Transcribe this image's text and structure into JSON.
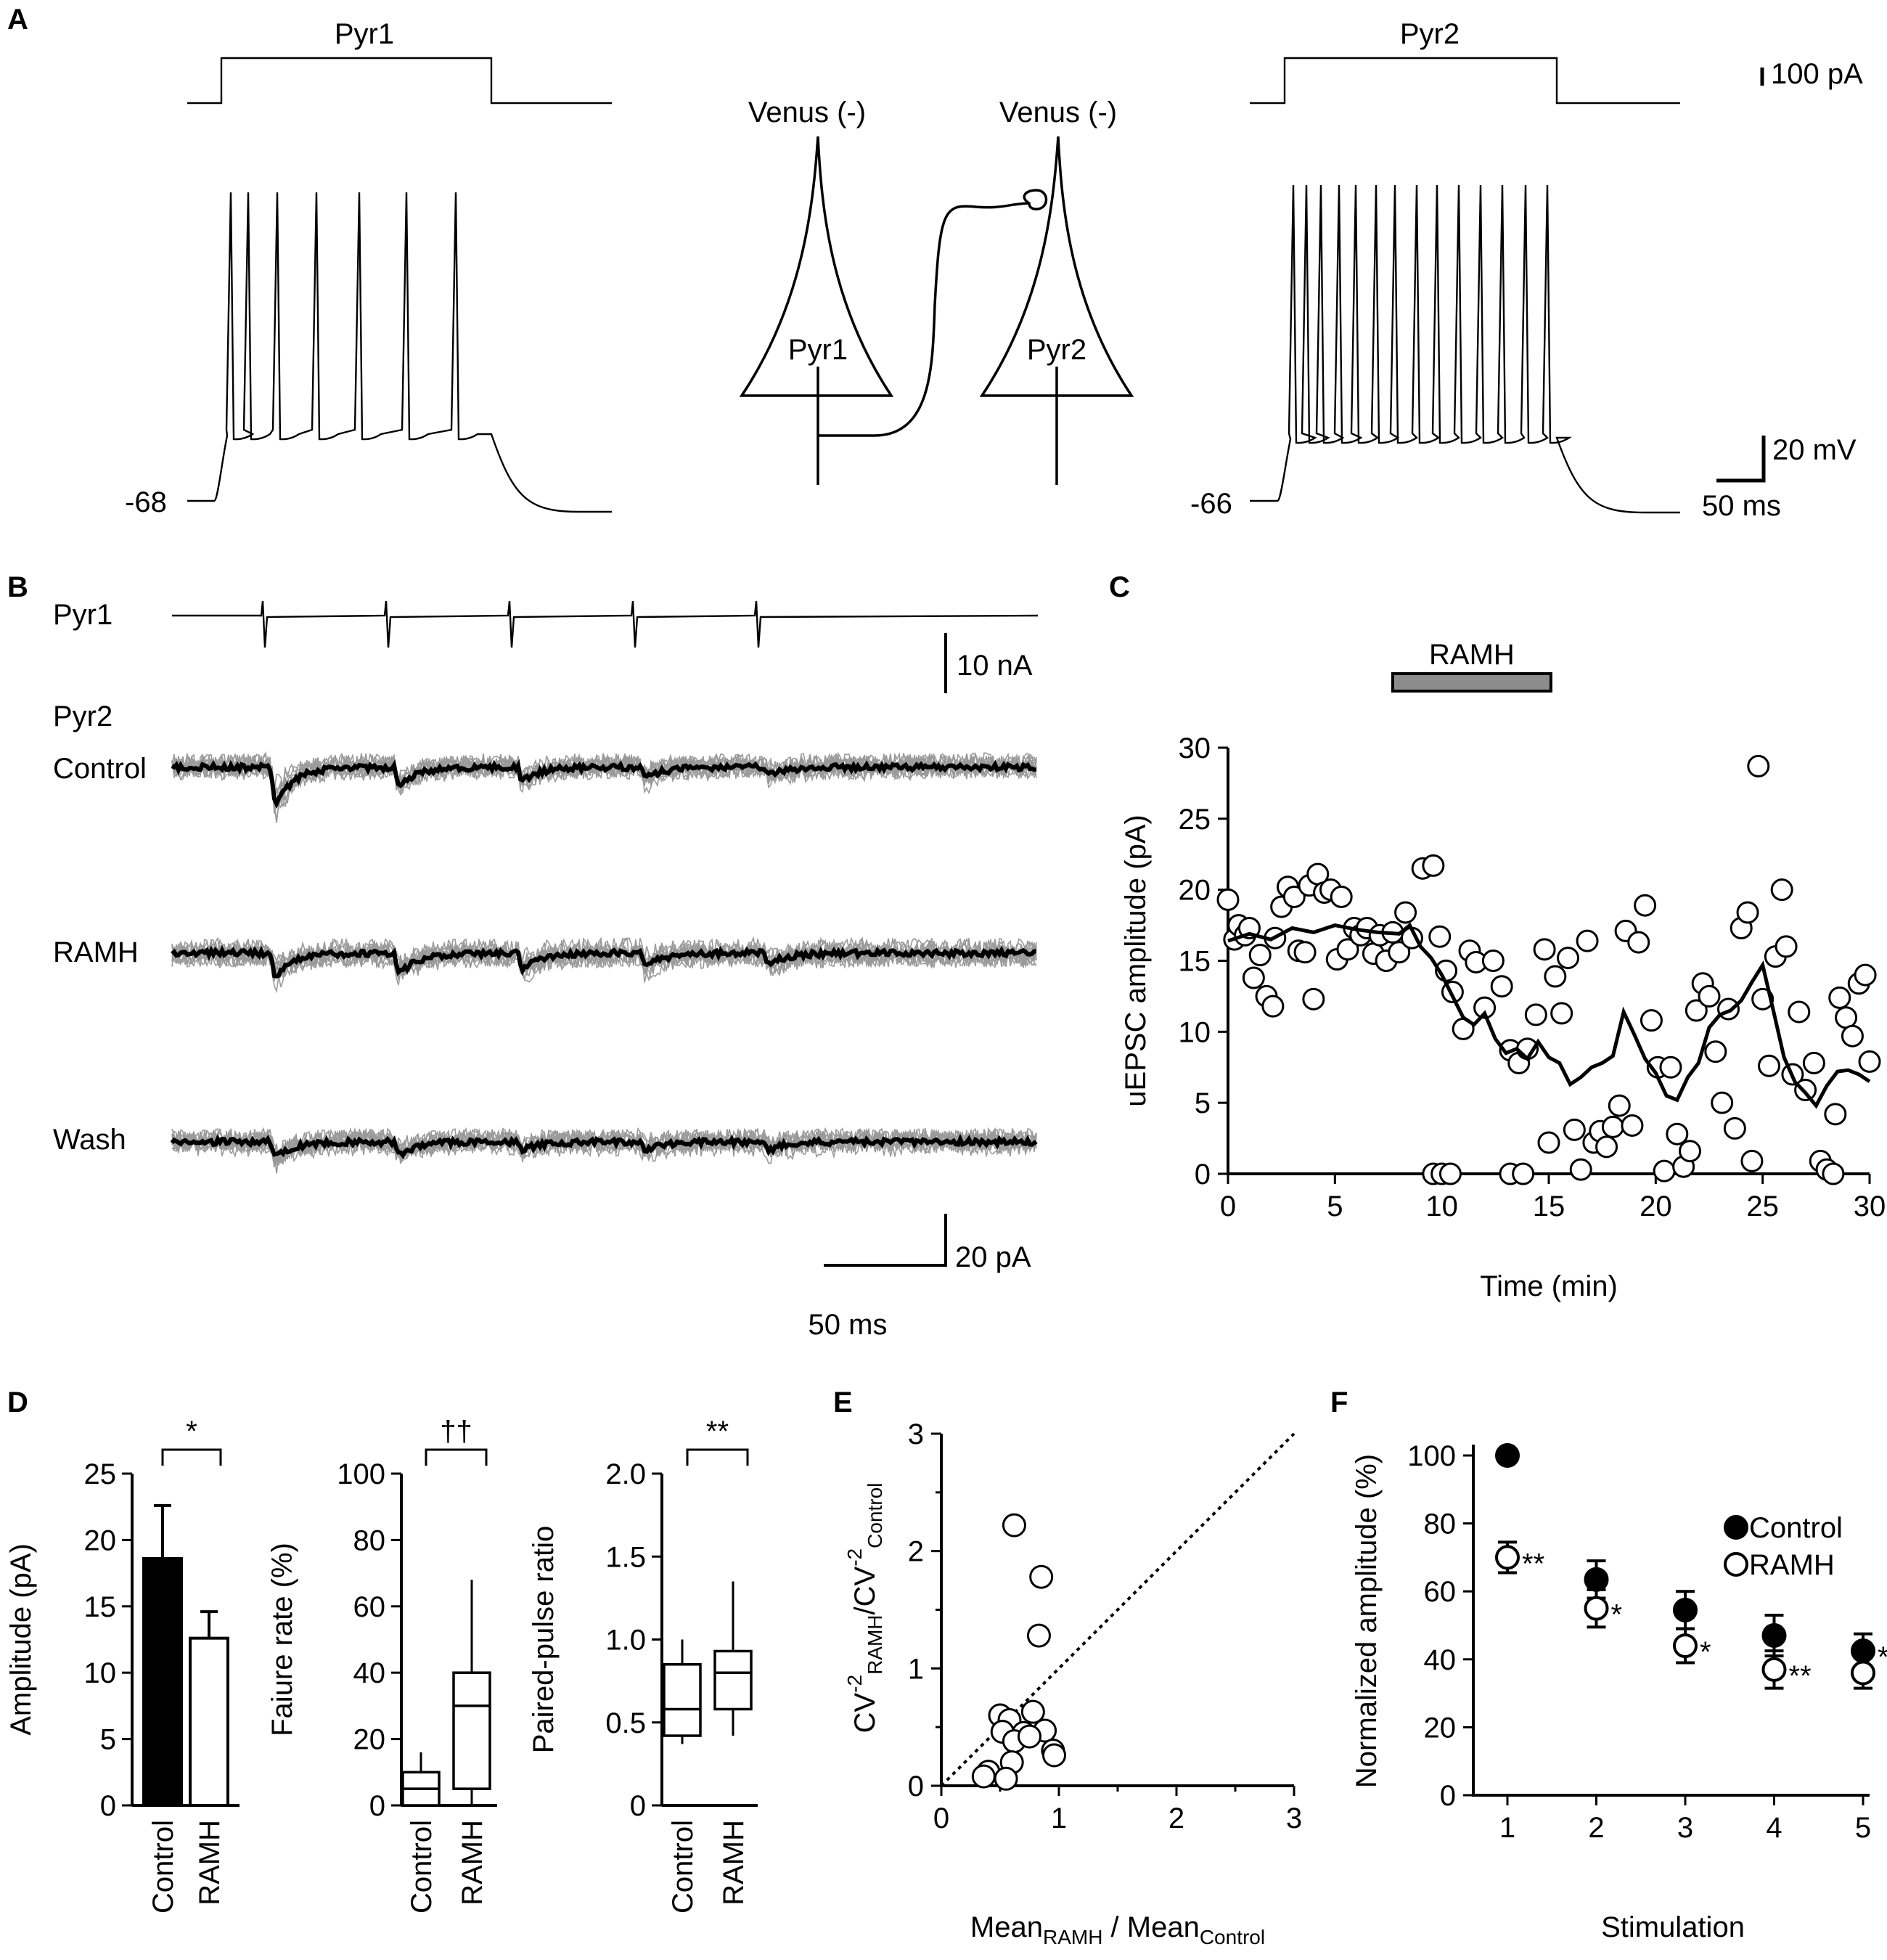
{
  "panels": {
    "A": {
      "label": "A",
      "cell1": "Pyr1",
      "cell2": "Pyr2",
      "marker1": "Venus (-)",
      "marker2": "Venus (-)",
      "soma1": "Pyr1",
      "soma2": "Pyr2",
      "vrest1": "-68",
      "vrest2": "-66",
      "scale_current": "100 pA",
      "scale_voltage": "20 mV",
      "scale_time": "50 ms"
    },
    "B": {
      "label": "B",
      "pre": "Pyr1",
      "post": "Pyr2",
      "cond_control": "Control",
      "cond_ramh": "RAMH",
      "cond_wash": "Wash",
      "scale_nA": "10 nA",
      "scale_pA": "20 pA",
      "scale_ms": "50 ms"
    },
    "C": {
      "label": "C",
      "drug_bar": "RAMH"
    },
    "D": {
      "label": "D"
    },
    "E": {
      "label": "E"
    },
    "F": {
      "label": "F"
    }
  },
  "chart_data": [
    {
      "id": "C",
      "type": "scatter",
      "xlabel": "Time (min)",
      "ylabel": "uEPSC amplitude (pA)",
      "xlim": [
        0,
        30
      ],
      "ylim": [
        0,
        30
      ],
      "xticks": [
        "0",
        "5",
        "10",
        "15",
        "20",
        "25",
        "30"
      ],
      "yticks": [
        "0",
        "5",
        "10",
        "15",
        "20",
        "25",
        "30"
      ],
      "drug_period": [
        7.7,
        15.1
      ],
      "points": [
        [
          0,
          19.3
        ],
        [
          0.3,
          16.5
        ],
        [
          0.5,
          17.5
        ],
        [
          0.8,
          16.8
        ],
        [
          1.0,
          17.3
        ],
        [
          1.2,
          13.8
        ],
        [
          1.5,
          15.4
        ],
        [
          1.8,
          12.5
        ],
        [
          2.1,
          11.8
        ],
        [
          2.2,
          16.6
        ],
        [
          2.5,
          18.8
        ],
        [
          2.8,
          20.2
        ],
        [
          3.1,
          19.5
        ],
        [
          3.3,
          15.7
        ],
        [
          3.6,
          15.6
        ],
        [
          3.8,
          20.3
        ],
        [
          4.0,
          12.3
        ],
        [
          4.2,
          21.1
        ],
        [
          4.5,
          19.8
        ],
        [
          4.8,
          20.0
        ],
        [
          5.1,
          15.1
        ],
        [
          5.3,
          19.5
        ],
        [
          5.6,
          15.8
        ],
        [
          5.9,
          17.3
        ],
        [
          6.2,
          16.8
        ],
        [
          6.5,
          17.3
        ],
        [
          6.8,
          15.5
        ],
        [
          7.1,
          16.8
        ],
        [
          7.4,
          15.0
        ],
        [
          7.7,
          17.0
        ],
        [
          8.0,
          15.6
        ],
        [
          8.3,
          18.4
        ],
        [
          8.6,
          16.6
        ],
        [
          9.1,
          21.5
        ],
        [
          9.6,
          21.7
        ],
        [
          9.9,
          16.7
        ],
        [
          10.2,
          14.3
        ],
        [
          10.5,
          12.8
        ],
        [
          11.0,
          10.2
        ],
        [
          11.3,
          15.7
        ],
        [
          11.6,
          14.9
        ],
        [
          12.0,
          11.7
        ],
        [
          12.4,
          15.0
        ],
        [
          12.8,
          13.2
        ],
        [
          13.2,
          8.7
        ],
        [
          13.6,
          7.8
        ],
        [
          14.0,
          8.8
        ],
        [
          14.4,
          11.2
        ],
        [
          14.8,
          15.8
        ],
        [
          15.0,
          2.2
        ],
        [
          15.3,
          13.9
        ],
        [
          15.6,
          11.3
        ],
        [
          15.9,
          15.2
        ],
        [
          16.2,
          3.1
        ],
        [
          16.5,
          0.3
        ],
        [
          16.8,
          16.4
        ],
        [
          17.1,
          2.2
        ],
        [
          17.4,
          3.0
        ],
        [
          17.7,
          1.9
        ],
        [
          18.0,
          3.3
        ],
        [
          18.3,
          4.8
        ],
        [
          18.6,
          17.1
        ],
        [
          18.9,
          3.4
        ],
        [
          19.2,
          16.3
        ],
        [
          19.5,
          18.9
        ],
        [
          19.8,
          10.8
        ],
        [
          20.1,
          7.5
        ],
        [
          20.4,
          0.2
        ],
        [
          20.7,
          7.5
        ],
        [
          21.0,
          2.8
        ],
        [
          21.3,
          0.5
        ],
        [
          21.6,
          1.6
        ],
        [
          21.9,
          11.5
        ],
        [
          22.2,
          13.4
        ],
        [
          22.5,
          12.5
        ],
        [
          22.8,
          8.6
        ],
        [
          23.1,
          5.0
        ],
        [
          23.4,
          11.6
        ],
        [
          23.7,
          3.2
        ],
        [
          24.0,
          17.3
        ],
        [
          24.3,
          18.4
        ],
        [
          24.5,
          0.9
        ],
        [
          24.8,
          28.7
        ],
        [
          25.0,
          12.3
        ],
        [
          25.3,
          7.6
        ],
        [
          25.6,
          15.3
        ],
        [
          25.9,
          20.0
        ],
        [
          26.1,
          16.0
        ],
        [
          26.4,
          7.0
        ],
        [
          26.7,
          11.4
        ],
        [
          27.0,
          5.9
        ],
        [
          27.4,
          7.8
        ],
        [
          27.7,
          0.9
        ],
        [
          28.0,
          0.3
        ],
        [
          28.4,
          4.2
        ],
        [
          28.6,
          12.4
        ],
        [
          28.9,
          11.0
        ],
        [
          29.2,
          9.7
        ],
        [
          29.5,
          13.4
        ],
        [
          29.8,
          14.0
        ],
        [
          30.0,
          7.9
        ],
        [
          9.6,
          0
        ],
        [
          10.0,
          0
        ],
        [
          10.4,
          0
        ],
        [
          13.2,
          0
        ],
        [
          13.8,
          0
        ],
        [
          28.3,
          0
        ]
      ],
      "running_mean": [
        [
          0,
          16.4
        ],
        [
          1,
          16.9
        ],
        [
          2,
          16.5
        ],
        [
          3,
          17.3
        ],
        [
          4,
          17.0
        ],
        [
          5,
          17.5
        ],
        [
          6,
          17.2
        ],
        [
          7,
          17.0
        ],
        [
          8,
          16.9
        ],
        [
          8.5,
          17.5
        ],
        [
          9,
          16.0
        ],
        [
          9.5,
          15.2
        ],
        [
          10,
          14.0
        ],
        [
          10.5,
          12.5
        ],
        [
          11,
          11.0
        ],
        [
          11.5,
          10.5
        ],
        [
          12,
          11.3
        ],
        [
          12.5,
          9.5
        ],
        [
          13,
          8.5
        ],
        [
          13.5,
          8.8
        ],
        [
          14,
          8.1
        ],
        [
          14.5,
          9.3
        ],
        [
          15,
          8.2
        ],
        [
          15.5,
          7.8
        ],
        [
          16,
          6.3
        ],
        [
          16.5,
          6.8
        ],
        [
          17,
          7.5
        ],
        [
          17.5,
          7.8
        ],
        [
          18,
          8.3
        ],
        [
          18.5,
          11.4
        ],
        [
          19,
          9.8
        ],
        [
          19.5,
          8.1
        ],
        [
          20,
          7.1
        ],
        [
          20.5,
          5.5
        ],
        [
          21,
          5.2
        ],
        [
          21.5,
          6.8
        ],
        [
          22,
          7.8
        ],
        [
          22.5,
          10.3
        ],
        [
          23,
          11.2
        ],
        [
          23.5,
          11.5
        ],
        [
          24,
          12.2
        ],
        [
          24.5,
          13.5
        ],
        [
          25,
          14.7
        ],
        [
          25.5,
          11.5
        ],
        [
          26,
          8.2
        ],
        [
          26.5,
          6.5
        ],
        [
          27,
          5.7
        ],
        [
          27.5,
          4.8
        ],
        [
          28,
          6.2
        ],
        [
          28.5,
          7.2
        ],
        [
          29,
          7.3
        ],
        [
          29.5,
          7.0
        ],
        [
          30,
          6.5
        ]
      ]
    },
    {
      "id": "D-amplitude",
      "type": "bar",
      "categories": [
        "Control",
        "RAMH"
      ],
      "values": [
        18.6,
        12.6
      ],
      "errors": [
        4.0,
        2.0
      ],
      "ylabel": "Amplitude (pA)",
      "ylim": [
        0,
        25
      ],
      "yticks": [
        "0",
        "5",
        "10",
        "15",
        "20",
        "25"
      ],
      "significance": "*"
    },
    {
      "id": "D-failure",
      "type": "box",
      "categories": [
        "Control",
        "RAMH"
      ],
      "boxes": [
        {
          "whisker_low": 0,
          "q1": 0,
          "median": 5,
          "q3": 10,
          "whisker_high": 16
        },
        {
          "whisker_low": 0,
          "q1": 5,
          "median": 30,
          "q3": 40,
          "whisker_high": 68
        }
      ],
      "ylabel": "Faiure rate (%)",
      "ylim": [
        0,
        100
      ],
      "yticks": [
        "0",
        "20",
        "40",
        "60",
        "80",
        "100"
      ],
      "significance": "††"
    },
    {
      "id": "D-ppr",
      "type": "box",
      "categories": [
        "Control",
        "RAMH"
      ],
      "boxes": [
        {
          "whisker_low": 0.37,
          "q1": 0.42,
          "median": 0.58,
          "q3": 0.85,
          "whisker_high": 1.0
        },
        {
          "whisker_low": 0.42,
          "q1": 0.58,
          "median": 0.8,
          "q3": 0.93,
          "whisker_high": 1.35
        }
      ],
      "ylabel": "Paired-pulse ratio",
      "ylim": [
        0,
        2.0
      ],
      "yticks": [
        "0",
        "0.5",
        "1.0",
        "1.5",
        "2.0"
      ],
      "significance": "**"
    },
    {
      "id": "E",
      "type": "scatter",
      "xlabel_main": "Mean",
      "xlabel_sub1": "RAMH",
      "xlabel_mid": " / Mean",
      "xlabel_sub2": "Control",
      "ylabel_main": "CV",
      "ylabel_sup": "-2",
      "ylabel_sub1": "RAMH",
      "ylabel_slash": "/CV",
      "ylabel_sub2": "Control",
      "xlim": [
        0,
        3
      ],
      "ylim": [
        0,
        3
      ],
      "xticks": [
        "0",
        "1",
        "2",
        "3"
      ],
      "yticks": [
        "0",
        "1",
        "2",
        "3"
      ],
      "identity_line": true,
      "points": [
        [
          0.62,
          2.22
        ],
        [
          0.85,
          1.78
        ],
        [
          0.83,
          1.28
        ],
        [
          0.5,
          0.6
        ],
        [
          0.58,
          0.56
        ],
        [
          0.78,
          0.63
        ],
        [
          0.52,
          0.46
        ],
        [
          0.7,
          0.45
        ],
        [
          0.88,
          0.47
        ],
        [
          0.62,
          0.38
        ],
        [
          0.75,
          0.42
        ],
        [
          0.95,
          0.3
        ],
        [
          0.96,
          0.26
        ],
        [
          0.6,
          0.2
        ],
        [
          0.4,
          0.12
        ],
        [
          0.36,
          0.08
        ],
        [
          0.55,
          0.06
        ]
      ]
    },
    {
      "id": "F",
      "type": "scatter",
      "xlabel": "Stimulation",
      "ylabel": "Normalized amplitude (%)",
      "xlim": [
        0.7,
        5.3
      ],
      "ylim": [
        0,
        100
      ],
      "xticks": [
        "1",
        "2",
        "3",
        "4",
        "5"
      ],
      "yticks": [
        "0",
        "20",
        "40",
        "60",
        "80",
        "100"
      ],
      "series": [
        {
          "name": "Control",
          "x": [
            1,
            2,
            3,
            4,
            5
          ],
          "values": [
            100,
            63.5,
            54.5,
            47,
            42.5
          ],
          "errors": [
            0,
            5.5,
            5.5,
            6,
            5
          ],
          "filled": true,
          "marks": [
            "",
            "",
            "",
            "",
            "*"
          ]
        },
        {
          "name": "RAMH",
          "x": [
            1,
            2,
            3,
            4,
            5
          ],
          "values": [
            70,
            55,
            44,
            37,
            36
          ],
          "errors": [
            4.5,
            5.5,
            5,
            5.5,
            4.5
          ],
          "filled": false,
          "marks": [
            "**",
            "*",
            "*",
            "**",
            ""
          ]
        }
      ]
    }
  ]
}
